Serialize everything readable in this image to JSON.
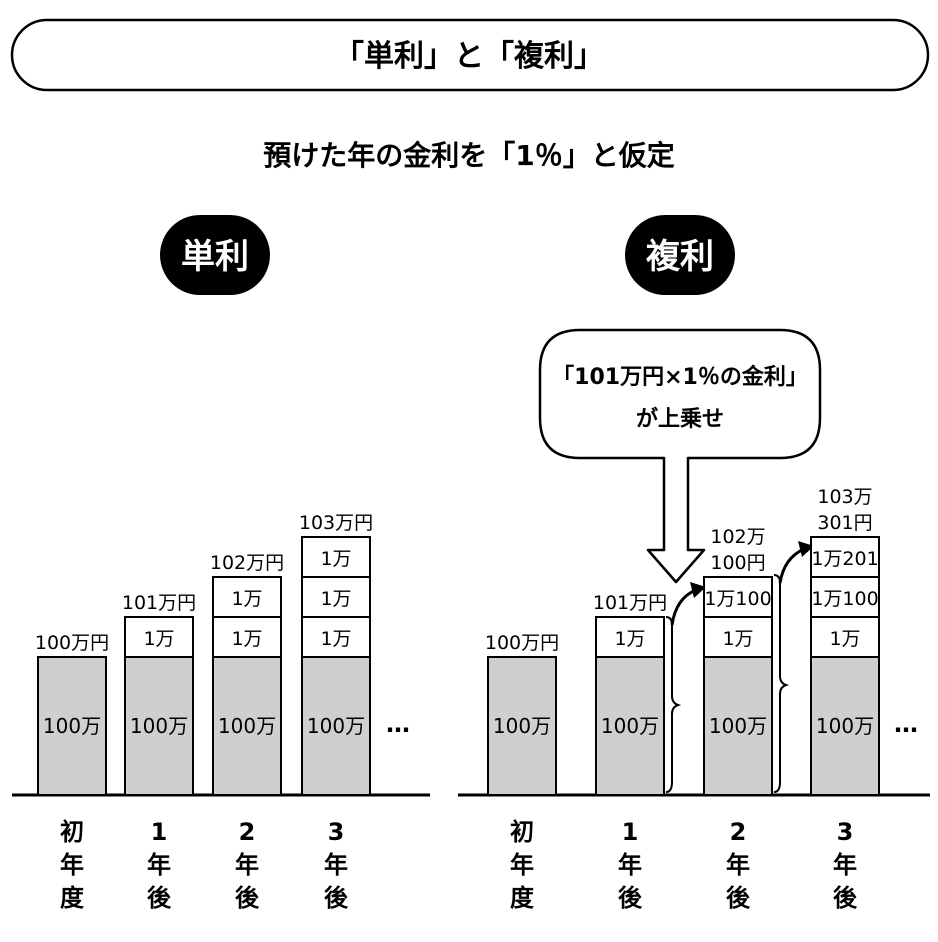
{
  "title": "「単利」と「複利」",
  "subtitle": "預けた年の金利を「1％」と仮定",
  "panels": [
    {
      "badge": "単利",
      "columns": [
        {
          "total": [
            "100万円"
          ],
          "base": "100万",
          "cells": [],
          "axis": [
            "初",
            "年",
            "度"
          ]
        },
        {
          "total": [
            "101万円"
          ],
          "base": "100万",
          "cells": [
            "1万"
          ],
          "axis": [
            "1",
            "年",
            "後"
          ]
        },
        {
          "total": [
            "102万円"
          ],
          "base": "100万",
          "cells": [
            "1万",
            "1万"
          ],
          "axis": [
            "2",
            "年",
            "後"
          ]
        },
        {
          "total": [
            "103万円"
          ],
          "base": "100万",
          "cells": [
            "1万",
            "1万",
            "1万"
          ],
          "axis": [
            "3",
            "年",
            "後"
          ]
        }
      ],
      "ellipsis": "…"
    },
    {
      "badge": "複利",
      "columns": [
        {
          "total": [
            "100万円"
          ],
          "base": "100万",
          "cells": [],
          "axis": [
            "初",
            "年",
            "度"
          ]
        },
        {
          "total": [
            "101万円"
          ],
          "base": "100万",
          "cells": [
            "1万"
          ],
          "axis": [
            "1",
            "年",
            "後"
          ]
        },
        {
          "total": [
            "102万",
            "100円"
          ],
          "base": "100万",
          "cells": [
            "1万",
            "1万100"
          ],
          "axis": [
            "2",
            "年",
            "後"
          ]
        },
        {
          "total": [
            "103万",
            "301円"
          ],
          "base": "100万",
          "cells": [
            "1万",
            "1万100",
            "1万201"
          ],
          "axis": [
            "3",
            "年",
            "後"
          ]
        }
      ],
      "ellipsis": "…",
      "callout": [
        "「101万円×1％の金利」",
        "が上乗せ"
      ]
    }
  ],
  "colors": {
    "bar_fill": "#cfcfcf",
    "cell_fill": "#ffffff",
    "badge_fill": "#000000",
    "stroke": "#000000"
  }
}
